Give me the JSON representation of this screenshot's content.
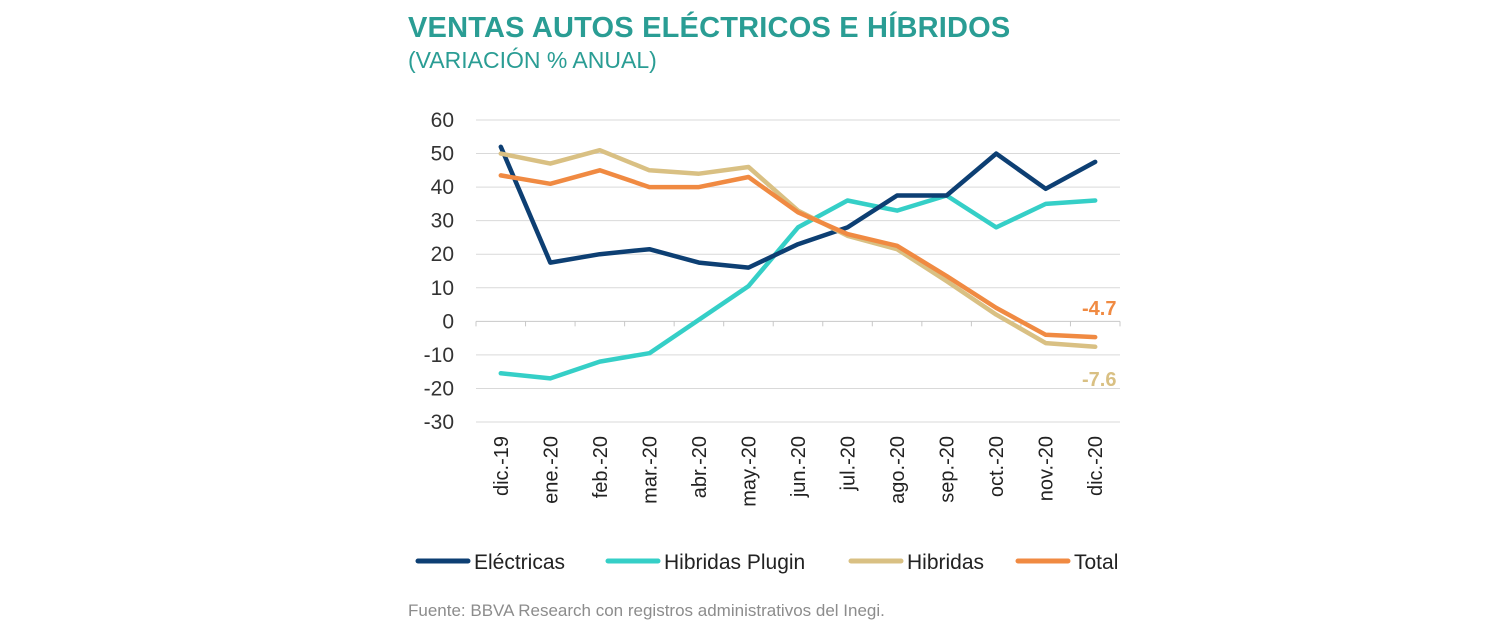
{
  "chart_data": {
    "type": "line",
    "title": "VENTAS AUTOS ELÉCTRICOS E HÍBRIDOS",
    "subtitle": "(VARIACIÓN  % ANUAL)",
    "categories": [
      "dic.-19",
      "ene.-20",
      "feb.-20",
      "mar.-20",
      "abr.-20",
      "may.-20",
      "jun.-20",
      "jul.-20",
      "ago.-20",
      "sep.-20",
      "oct.-20",
      "nov.-20",
      "dic.-20"
    ],
    "ylim": [
      -30,
      60
    ],
    "yticks": [
      60,
      50,
      40,
      30,
      20,
      10,
      0,
      -10,
      -20,
      -30
    ],
    "grid": true,
    "legend_position": "bottom",
    "series": [
      {
        "name": "Eléctricas",
        "color": "#0d3f73",
        "values": [
          52,
          17.5,
          20,
          21.5,
          17.5,
          16,
          23,
          28,
          37.5,
          37.5,
          50,
          39.5,
          47.5
        ]
      },
      {
        "name": "Hibridas Plugin",
        "color": "#35cfc7",
        "values": [
          -15.5,
          -17,
          -12,
          -9.5,
          0.5,
          10.5,
          28,
          36,
          33,
          37.5,
          28,
          35,
          36
        ]
      },
      {
        "name": "Hibridas",
        "color": "#d9c083",
        "values": [
          50,
          47,
          51,
          45,
          44,
          46,
          33,
          25.5,
          21.5,
          12,
          2,
          -6.5,
          -7.6
        ]
      },
      {
        "name": "Total",
        "color": "#f08a42",
        "values": [
          43.5,
          41,
          45,
          40,
          40,
          43,
          32.5,
          26,
          22.5,
          13.5,
          4,
          -4,
          -4.7
        ]
      }
    ],
    "annotations": [
      {
        "text": "-4.7",
        "series": "Total",
        "color": "#f08a42"
      },
      {
        "text": "-7.6",
        "series": "Hibridas",
        "color": "#d9c083"
      }
    ]
  },
  "source": "Fuente:  BBVA Research con registros administrativos del Inegi."
}
